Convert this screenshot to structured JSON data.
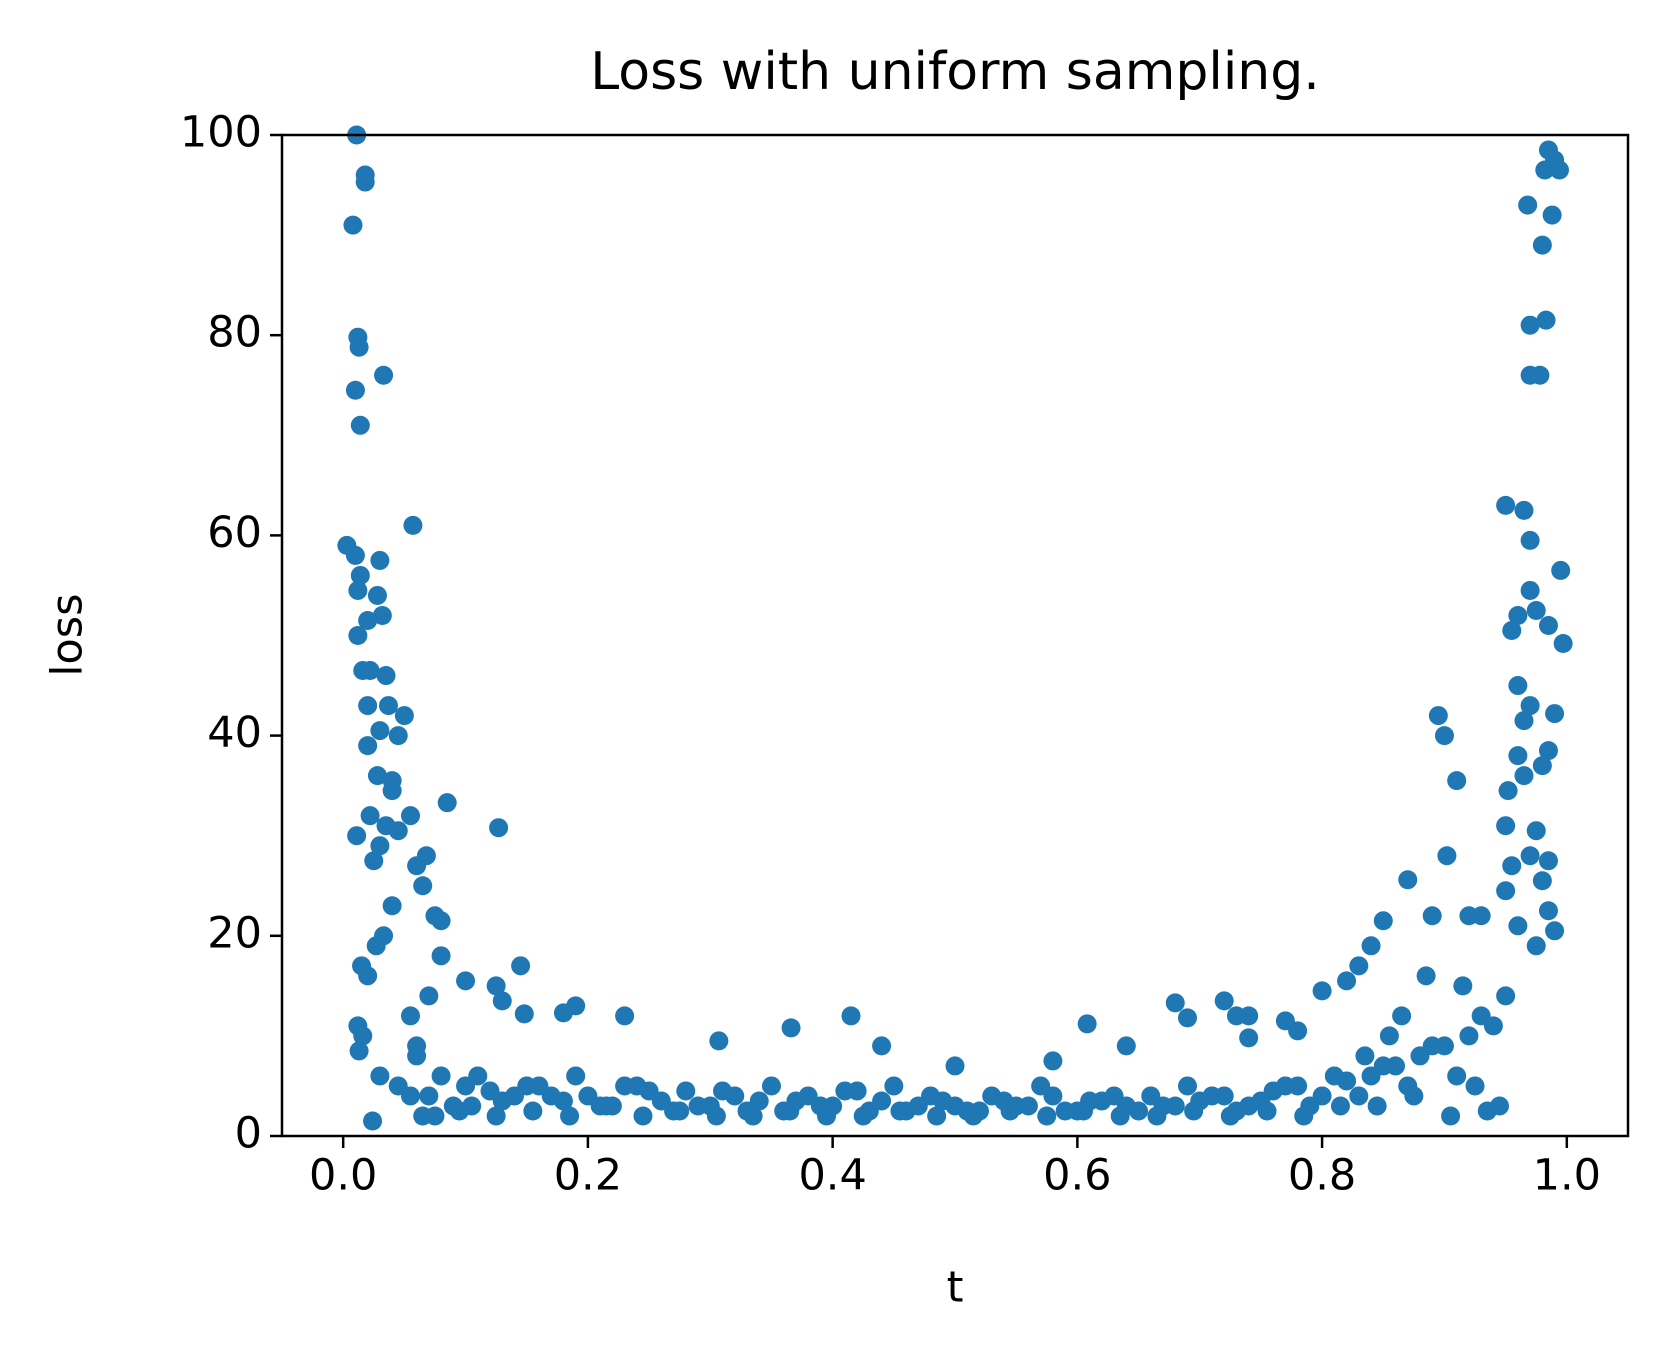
{
  "chart_data": {
    "type": "scatter",
    "title": "Loss with uniform sampling.",
    "x_label": "t",
    "y_label": "loss",
    "color": "#1f77b4",
    "xlim": [
      -0.05,
      1.05
    ],
    "ylim": [
      0,
      100
    ],
    "xticks": [
      {
        "value": 0,
        "label": "0.0"
      },
      0.2,
      0.4,
      0.6,
      0.8,
      {
        "value": 1,
        "label": "1.0"
      }
    ],
    "yticks": [
      0,
      20,
      40,
      60,
      80,
      100
    ],
    "x": [
      0.008,
      0.01,
      0.012,
      0.013,
      0.014,
      0.018,
      0.018,
      0.033,
      0.011,
      0.003,
      0.01,
      0.014,
      0.012,
      0.03,
      0.028,
      0.032,
      0.02,
      0.012,
      0.057,
      0.016,
      0.022,
      0.035,
      0.02,
      0.037,
      0.05,
      0.03,
      0.045,
      0.02,
      0.028,
      0.04,
      0.04,
      0.055,
      0.022,
      0.035,
      0.045,
      0.011,
      0.03,
      0.068,
      0.025,
      0.06,
      0.065,
      0.04,
      0.075,
      0.08,
      0.033,
      0.027,
      0.08,
      0.015,
      0.02,
      0.1,
      0.012,
      0.016,
      0.013,
      0.03,
      0.024,
      0.045,
      0.055,
      0.07,
      0.06,
      0.085,
      0.127,
      0.145,
      0.125,
      0.13,
      0.19,
      0.18,
      0.23,
      0.148,
      0.366,
      0.415,
      0.608,
      0.307,
      0.44,
      0.5,
      0.58,
      0.64,
      0.68,
      0.69,
      0.72,
      0.73,
      0.74,
      0.74,
      0.77,
      0.78,
      0.8,
      0.82,
      0.83,
      0.84,
      0.85,
      0.87,
      0.89,
      0.895,
      0.9,
      0.91,
      0.902,
      0.92,
      0.93,
      0.95,
      0.965,
      0.97,
      0.97,
      0.96,
      0.975,
      0.985,
      0.955,
      0.997,
      0.995,
      0.96,
      0.965,
      0.97,
      0.99,
      0.952,
      0.96,
      0.985,
      0.98,
      0.965,
      0.95,
      0.975,
      0.955,
      0.97,
      0.985,
      0.98,
      0.95,
      0.96,
      0.99,
      0.975,
      0.985,
      0.97,
      0.978,
      0.97,
      0.983,
      0.968,
      0.985,
      0.99,
      0.994,
      0.982,
      0.988,
      0.98,
      0.06,
      0.08,
      0.1,
      0.12,
      0.14,
      0.16,
      0.18,
      0.2,
      0.22,
      0.24,
      0.26,
      0.28,
      0.3,
      0.32,
      0.34,
      0.36,
      0.38,
      0.4,
      0.42,
      0.44,
      0.46,
      0.48,
      0.5,
      0.52,
      0.54,
      0.56,
      0.58,
      0.6,
      0.62,
      0.64,
      0.66,
      0.68,
      0.7,
      0.72,
      0.74,
      0.76,
      0.78,
      0.8,
      0.82,
      0.84,
      0.86,
      0.88,
      0.9,
      0.92,
      0.94,
      0.07,
      0.09,
      0.11,
      0.13,
      0.15,
      0.17,
      0.19,
      0.21,
      0.23,
      0.25,
      0.27,
      0.29,
      0.31,
      0.33,
      0.35,
      0.37,
      0.39,
      0.41,
      0.43,
      0.45,
      0.47,
      0.49,
      0.51,
      0.53,
      0.55,
      0.57,
      0.59,
      0.61,
      0.63,
      0.65,
      0.67,
      0.69,
      0.71,
      0.73,
      0.75,
      0.77,
      0.79,
      0.81,
      0.83,
      0.85,
      0.87,
      0.89,
      0.91,
      0.93,
      0.95,
      0.065,
      0.095,
      0.125,
      0.155,
      0.185,
      0.215,
      0.245,
      0.275,
      0.305,
      0.335,
      0.365,
      0.395,
      0.425,
      0.455,
      0.485,
      0.515,
      0.545,
      0.575,
      0.605,
      0.635,
      0.665,
      0.695,
      0.725,
      0.755,
      0.785,
      0.815,
      0.845,
      0.875,
      0.905,
      0.935,
      0.945,
      0.925,
      0.915,
      0.885,
      0.865,
      0.855,
      0.835,
      0.055,
      0.075,
      0.105
    ],
    "values": [
      91,
      74.5,
      79.8,
      78.8,
      71,
      96,
      95.3,
      76,
      100,
      59,
      58,
      56,
      54.5,
      57.5,
      54,
      52,
      51.5,
      50,
      61,
      46.5,
      46.5,
      46,
      43,
      43,
      42,
      40.5,
      40,
      39,
      36,
      35.5,
      34.5,
      32,
      32,
      31,
      30.5,
      30,
      29,
      28,
      27.5,
      27,
      25,
      23,
      22,
      21.5,
      20,
      19,
      18,
      17,
      16,
      15.5,
      11,
      10,
      8.5,
      6,
      1.5,
      5,
      12,
      14,
      9,
      33.3,
      30.8,
      17,
      15,
      13.5,
      13,
      12.3,
      12,
      12.2,
      10.8,
      12,
      11.2,
      9.5,
      9,
      7,
      7.5,
      9,
      13.3,
      11.8,
      13.5,
      12,
      12,
      9.8,
      11.5,
      10.5,
      14.5,
      15.5,
      17,
      19,
      21.5,
      25.6,
      22,
      42,
      40,
      35.5,
      28,
      22,
      22,
      63,
      62.5,
      59.5,
      54.5,
      52,
      52.5,
      51,
      50.5,
      49.2,
      56.5,
      45,
      41.5,
      43,
      42.2,
      34.5,
      38,
      38.5,
      37,
      36,
      31,
      30.5,
      27,
      28,
      27.5,
      25.5,
      24.5,
      21,
      20.5,
      19,
      22.5,
      76,
      76,
      81,
      81.5,
      93,
      98.5,
      97.5,
      96.5,
      96.5,
      92,
      89,
      8,
      6,
      5,
      4.5,
      4,
      5,
      3.5,
      4,
      3,
      5,
      3.5,
      4.5,
      3,
      4,
      3.5,
      2.5,
      4,
      3,
      4.5,
      3.5,
      2.5,
      4,
      3,
      2.5,
      3.5,
      3,
      4,
      2.5,
      3.5,
      3,
      4,
      3,
      3.5,
      4,
      3,
      4.5,
      5,
      4,
      5.5,
      6,
      7,
      8,
      9,
      10,
      11,
      4,
      3,
      6,
      3.5,
      5,
      4,
      6,
      3,
      5,
      4.5,
      2.5,
      3,
      4.5,
      2.5,
      5,
      3.5,
      3,
      4.5,
      2.5,
      5,
      3,
      3.5,
      2.5,
      4,
      3,
      5,
      2.5,
      3.5,
      4,
      2.5,
      3,
      5,
      4,
      2.5,
      3.5,
      5,
      3,
      6,
      4,
      7,
      5,
      9,
      6,
      12,
      14,
      2,
      2.5,
      2,
      2.5,
      2,
      3,
      2,
      2.5,
      2,
      2,
      2.5,
      2,
      2,
      2.5,
      2,
      2,
      2.5,
      2,
      2.5,
      2,
      2,
      2.5,
      2,
      2.5,
      2,
      3,
      3,
      4,
      2,
      2.5,
      3,
      5,
      15,
      16,
      12,
      10,
      8,
      4,
      2,
      3
    ]
  }
}
